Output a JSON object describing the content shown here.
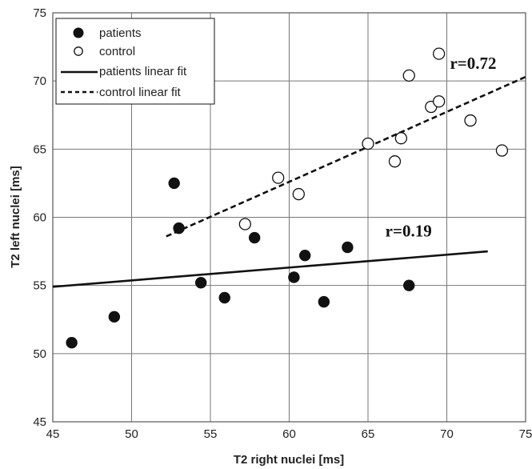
{
  "chart_data": {
    "type": "scatter",
    "xlabel": "T2 right nuclei  [ms]",
    "ylabel": "T2 left nuclei  [ms]",
    "xlim": [
      45,
      75
    ],
    "ylim": [
      45,
      75
    ],
    "x_ticks": [
      45,
      50,
      55,
      60,
      65,
      70,
      75
    ],
    "y_ticks": [
      45,
      50,
      55,
      60,
      65,
      70,
      75
    ],
    "grid": true,
    "legend_position": "top-left",
    "series": [
      {
        "name": "patients",
        "marker": "filled-circle",
        "color": "#111111",
        "points": [
          {
            "x": 46.2,
            "y": 50.8
          },
          {
            "x": 48.9,
            "y": 52.7
          },
          {
            "x": 52.7,
            "y": 62.5
          },
          {
            "x": 53.0,
            "y": 59.2
          },
          {
            "x": 54.4,
            "y": 55.2
          },
          {
            "x": 55.9,
            "y": 54.1
          },
          {
            "x": 57.8,
            "y": 58.5
          },
          {
            "x": 60.3,
            "y": 55.6
          },
          {
            "x": 61.0,
            "y": 57.2
          },
          {
            "x": 62.2,
            "y": 53.8
          },
          {
            "x": 63.7,
            "y": 57.8
          },
          {
            "x": 67.6,
            "y": 55.0
          }
        ]
      },
      {
        "name": "control",
        "marker": "open-circle",
        "color": "#111111",
        "points": [
          {
            "x": 57.2,
            "y": 59.5
          },
          {
            "x": 59.3,
            "y": 62.9
          },
          {
            "x": 60.6,
            "y": 61.7
          },
          {
            "x": 65.0,
            "y": 65.4
          },
          {
            "x": 66.7,
            "y": 64.1
          },
          {
            "x": 67.1,
            "y": 65.8
          },
          {
            "x": 67.6,
            "y": 70.4
          },
          {
            "x": 69.0,
            "y": 68.1
          },
          {
            "x": 69.5,
            "y": 68.5
          },
          {
            "x": 69.5,
            "y": 72.0
          },
          {
            "x": 71.5,
            "y": 67.1
          },
          {
            "x": 73.5,
            "y": 64.9
          }
        ]
      },
      {
        "name": "patients linear fit",
        "style": "solid",
        "color": "#111111",
        "points": [
          {
            "x": 45.0,
            "y": 54.9
          },
          {
            "x": 72.6,
            "y": 57.5
          }
        ]
      },
      {
        "name": "control linear fit",
        "style": "dashed",
        "color": "#111111",
        "points": [
          {
            "x": 52.2,
            "y": 58.6
          },
          {
            "x": 75.0,
            "y": 70.3
          }
        ]
      }
    ],
    "annotations": [
      {
        "text": "r=0.72",
        "x": 70.2,
        "y": 70.9
      },
      {
        "text": "r=0.19",
        "x": 66.1,
        "y": 58.6
      }
    ]
  }
}
